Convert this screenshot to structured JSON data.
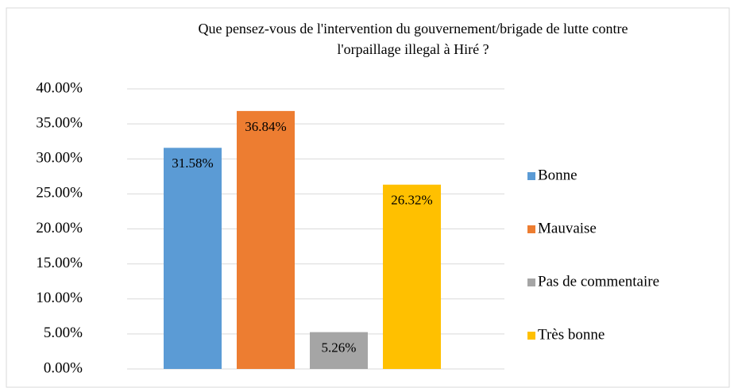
{
  "chart_data": {
    "type": "bar",
    "title": "Que pensez-vous de l'intervention du gouvernement/brigade de lutte contre l'orpaillage illegal à Hiré ?",
    "categories": [
      null
    ],
    "series": [
      {
        "name": "Bonne",
        "color": "#5b9bd5",
        "values": [
          31.58
        ],
        "value_labels": [
          "31.58%"
        ]
      },
      {
        "name": "Mauvaise",
        "color": "#ed7d31",
        "values": [
          36.84
        ],
        "value_labels": [
          "36.84%"
        ]
      },
      {
        "name": "Pas de commentaire",
        "color": "#a5a5a5",
        "values": [
          5.26
        ],
        "value_labels": [
          "5.26%"
        ]
      },
      {
        "name": "Très bonne",
        "color": "#ffc000",
        "values": [
          26.32
        ],
        "value_labels": [
          "26.32%"
        ]
      }
    ],
    "ylim": [
      0,
      40
    ],
    "yticks": [
      {
        "value": 0,
        "label": "0.00%"
      },
      {
        "value": 5,
        "label": "5.00%"
      },
      {
        "value": 10,
        "label": "10.00%"
      },
      {
        "value": 15,
        "label": "15.00%"
      },
      {
        "value": 20,
        "label": "20.00%"
      },
      {
        "value": 25,
        "label": "25.00%"
      },
      {
        "value": 30,
        "label": "30.00%"
      },
      {
        "value": 35,
        "label": "35.00%"
      },
      {
        "value": 40,
        "label": "40.00%"
      }
    ],
    "grid": true,
    "legend": "right"
  }
}
